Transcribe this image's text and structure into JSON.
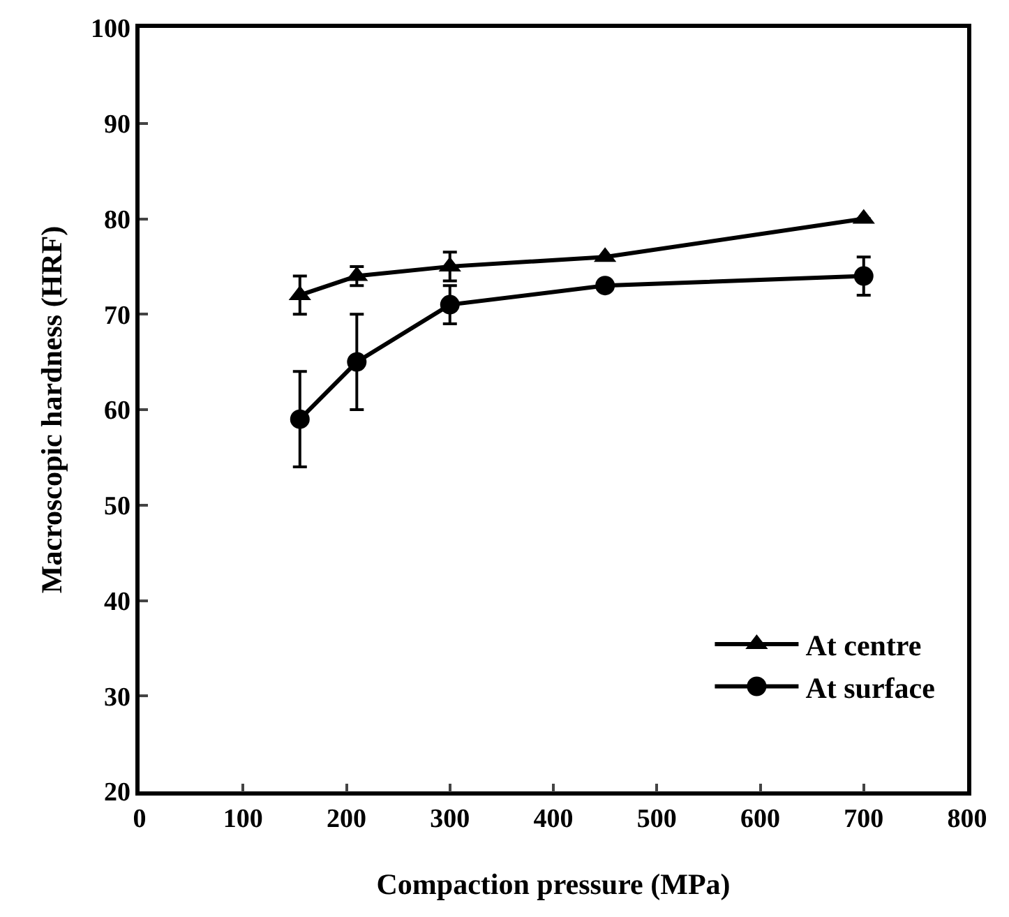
{
  "chart_data": {
    "type": "line",
    "xlabel": "Compaction pressure (MPa)",
    "ylabel": "Macroscopic hardness (HRF)",
    "x": [
      155,
      210,
      300,
      450,
      700
    ],
    "series": [
      {
        "name": "At centre",
        "color": "#000000",
        "marker": "triangle",
        "values": [
          72,
          74,
          75,
          76,
          80
        ],
        "errors": [
          2,
          1,
          1.5,
          null,
          null
        ]
      },
      {
        "name": "At surface",
        "color": "#000000",
        "marker": "circle",
        "values": [
          59,
          65,
          71,
          73,
          74
        ],
        "errors": [
          5,
          5,
          2,
          null,
          2
        ]
      }
    ],
    "xlim": [
      0,
      800
    ],
    "xticks": [
      0,
      100,
      200,
      300,
      400,
      500,
      600,
      700,
      800
    ],
    "ylim": [
      20,
      100
    ],
    "yticks": [
      20,
      30,
      40,
      50,
      60,
      70,
      80,
      90,
      100
    ],
    "legend": "bottom right",
    "line_style": "solid"
  }
}
